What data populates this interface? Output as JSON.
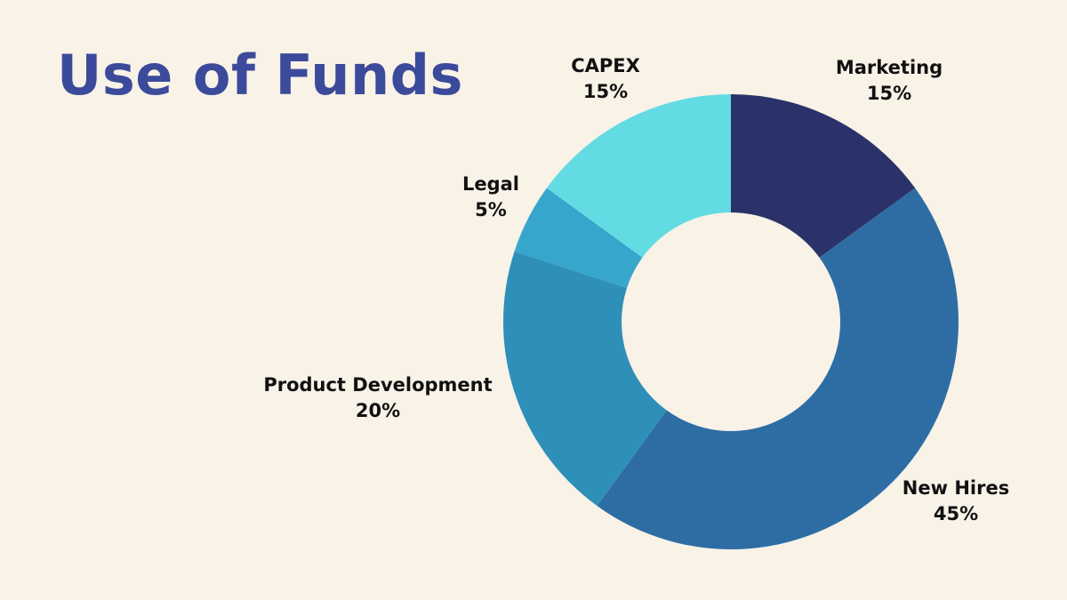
{
  "page": {
    "title": "Use of Funds"
  },
  "colors": {
    "background": "#f8f2e7",
    "title": "#3b4a9b",
    "label_text": "#111111"
  },
  "chart_data": {
    "type": "pie",
    "subtype": "donut",
    "title": "Use of Funds",
    "start_angle_deg": -90,
    "direction": "clockwise",
    "inner_radius_ratio": 0.48,
    "legend_position": "labels-outside",
    "segments": [
      {
        "label": "Marketing",
        "value": 15,
        "pct_label": "15%",
        "color": "#2b3269"
      },
      {
        "label": "New Hires",
        "value": 45,
        "pct_label": "45%",
        "color": "#2e6da4"
      },
      {
        "label": "Product Development",
        "value": 20,
        "pct_label": "20%",
        "color": "#2e8fb8"
      },
      {
        "label": "Legal",
        "value": 5,
        "pct_label": "5%",
        "color": "#36a6cc"
      },
      {
        "label": "CAPEX",
        "value": 15,
        "pct_label": "15%",
        "color": "#63dbe3"
      }
    ]
  }
}
